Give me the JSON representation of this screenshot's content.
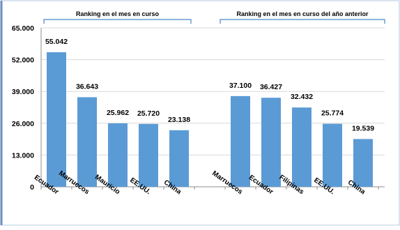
{
  "chart_data": {
    "type": "bar",
    "ylim": [
      0,
      65000
    ],
    "yticks": [
      "0",
      "13.000",
      "26.000",
      "39.000",
      "52.000",
      "65.000"
    ],
    "grid": true,
    "groups": [
      {
        "title": "Ranking en el mes en curso",
        "categories": [
          "Ecuador",
          "Marruecos",
          "Mauricio",
          "EE.UU.",
          "China"
        ],
        "values": [
          55042,
          36643,
          25962,
          25720,
          23138
        ],
        "labels": [
          "55.042",
          "36.643",
          "25.962",
          "25.720",
          "23.138"
        ]
      },
      {
        "title": "Ranking en el mes en curso del año anterior",
        "categories": [
          "Marruecos",
          "Ecuador",
          "Filipinas",
          "EE.UU.",
          "China"
        ],
        "values": [
          37100,
          36427,
          32432,
          25774,
          19539
        ],
        "labels": [
          "37.100",
          "36.427",
          "32.432",
          "25.774",
          "19.539"
        ]
      }
    ],
    "colors": {
      "bar": "#5B9BD5",
      "bracket": "#4A86C6",
      "grid": "#D9D9D9",
      "frame": "#6C8EBF"
    }
  }
}
